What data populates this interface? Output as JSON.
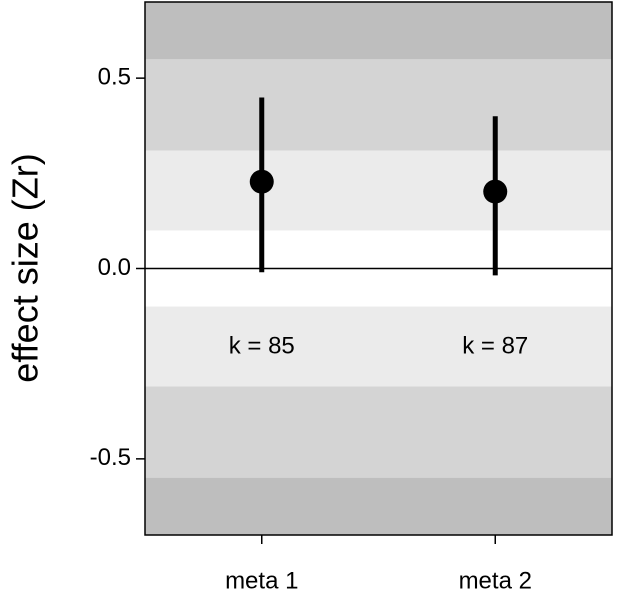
{
  "chart_data": {
    "type": "errorbar",
    "y_label": "effect size (Zr)",
    "categories": [
      "meta 1",
      "meta 2"
    ],
    "values": [
      0.228,
      0.202
    ],
    "lower": [
      -0.01,
      -0.018
    ],
    "upper": [
      0.449,
      0.4
    ],
    "annotations": [
      "k = 85",
      "k = 87"
    ],
    "color": "#000000",
    "ylim": [
      -0.7,
      0.7
    ],
    "yticks": [
      {
        "value": -0.5,
        "label": "-0.5"
      },
      {
        "value": 0,
        "label": "0.0"
      },
      {
        "value": 0.5,
        "label": "0.5"
      }
    ],
    "bands": [
      0.55,
      0.31,
      0.1
    ],
    "band_colors": [
      "#bebebe",
      "#d4d4d4",
      "#ebebeb",
      "#ffffff"
    ],
    "zero_line": true
  }
}
